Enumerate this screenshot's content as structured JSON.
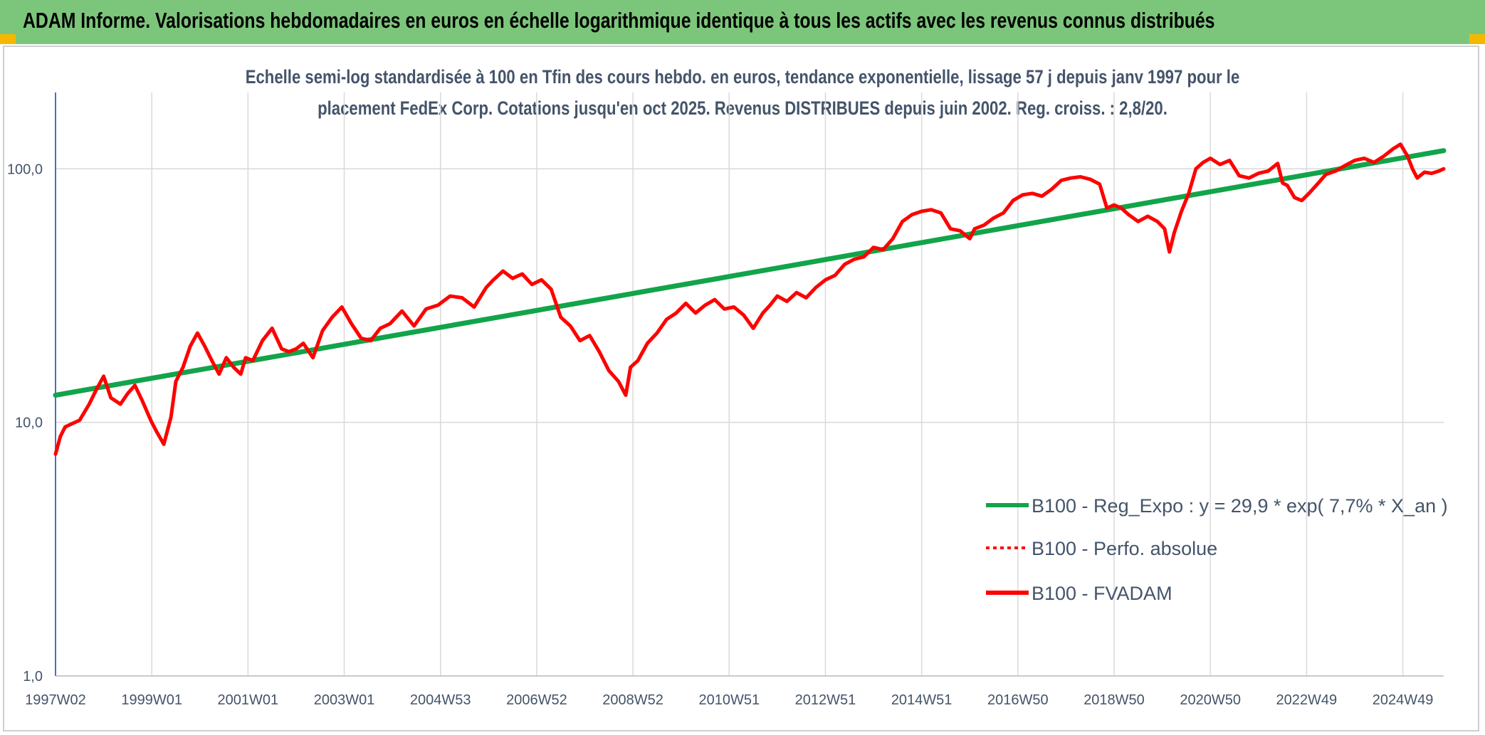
{
  "banner": {
    "title": "ADAM Informe. Valorisations hebdomadaires en euros en échelle logarithmique identique à tous les actifs avec les revenus connus distribués",
    "color": "#7cc67b"
  },
  "chart_data": {
    "type": "line",
    "subtitle_lines": [
      "Echelle semi-log standardisée à 100 en Tfin des cours hebdo. en euros, tendance exponentielle, lissage 57 j depuis janv 1997 pour le",
      "placement FedEx Corp. Cotations jusqu'en oct 2025. Revenus DISTRIBUES depuis juin 2002. Reg. croiss. : 2,8/20."
    ],
    "y_scale": "log",
    "ylim": [
      1,
      200
    ],
    "y_ticks": [
      {
        "value": 1,
        "label": "1,0"
      },
      {
        "value": 10,
        "label": "10,0"
      },
      {
        "value": 100,
        "label": "100,0"
      }
    ],
    "xlim": [
      1997.0,
      2025.85
    ],
    "x_ticks": [
      {
        "value": 1997.0,
        "label": "1997W02"
      },
      {
        "value": 1999.0,
        "label": "1999W01"
      },
      {
        "value": 2001.0,
        "label": "2001W01"
      },
      {
        "value": 2003.0,
        "label": "2003W01"
      },
      {
        "value": 2005.0,
        "label": "2004W53"
      },
      {
        "value": 2007.0,
        "label": "2006W52"
      },
      {
        "value": 2009.0,
        "label": "2008W52"
      },
      {
        "value": 2011.0,
        "label": "2010W51"
      },
      {
        "value": 2013.0,
        "label": "2012W51"
      },
      {
        "value": 2015.0,
        "label": "2014W51"
      },
      {
        "value": 2017.0,
        "label": "2016W50"
      },
      {
        "value": 2019.0,
        "label": "2018W50"
      },
      {
        "value": 2021.0,
        "label": "2020W50"
      },
      {
        "value": 2023.0,
        "label": "2022W49"
      },
      {
        "value": 2025.0,
        "label": "2024W49"
      }
    ],
    "grid": "vertical and horizontal, light gray",
    "legend_position": "lower-right",
    "series": [
      {
        "name": "B100 - Reg_Expo : y = 29,9 * exp( 7,7% *  X_an )",
        "color": "#12a44a",
        "style": "solid",
        "x": [
          1997.0,
          2025.85
        ],
        "y": [
          12.8,
          118
        ]
      },
      {
        "name": "B100 - Perfo. absolue",
        "color": "#ff0000",
        "style": "dotted",
        "x": [],
        "y": []
      },
      {
        "name": "B100 - FVADAM",
        "color": "#ff0000",
        "style": "solid",
        "x": [
          1997.0,
          1997.1,
          1997.2,
          1997.35,
          1997.5,
          1997.7,
          1997.85,
          1998.0,
          1998.15,
          1998.35,
          1998.5,
          1998.65,
          1998.8,
          1998.95,
          1999.0,
          1999.1,
          1999.25,
          1999.4,
          1999.5,
          1999.65,
          1999.8,
          1999.95,
          2000.1,
          2000.25,
          2000.4,
          2000.55,
          2000.7,
          2000.85,
          2000.95,
          2001.1,
          2001.3,
          2001.5,
          2001.7,
          2001.85,
          2002.0,
          2002.15,
          2002.35,
          2002.55,
          2002.75,
          2002.95,
          2003.15,
          2003.35,
          2003.55,
          2003.75,
          2003.95,
          2004.2,
          2004.45,
          2004.7,
          2004.95,
          2005.2,
          2005.45,
          2005.7,
          2005.95,
          2006.1,
          2006.3,
          2006.5,
          2006.7,
          2006.9,
          2007.1,
          2007.3,
          2007.5,
          2007.7,
          2007.9,
          2008.1,
          2008.3,
          2008.5,
          2008.7,
          2008.85,
          2008.95,
          2009.1,
          2009.3,
          2009.5,
          2009.7,
          2009.9,
          2010.1,
          2010.3,
          2010.5,
          2010.7,
          2010.9,
          2011.1,
          2011.3,
          2011.5,
          2011.7,
          2011.85,
          2012.0,
          2012.2,
          2012.4,
          2012.6,
          2012.8,
          2013.0,
          2013.2,
          2013.4,
          2013.6,
          2013.8,
          2014.0,
          2014.2,
          2014.4,
          2014.6,
          2014.8,
          2015.0,
          2015.2,
          2015.4,
          2015.6,
          2015.8,
          2016.0,
          2016.1,
          2016.3,
          2016.5,
          2016.7,
          2016.9,
          2017.1,
          2017.3,
          2017.5,
          2017.7,
          2017.9,
          2018.1,
          2018.3,
          2018.5,
          2018.7,
          2018.85,
          2019.0,
          2019.15,
          2019.3,
          2019.5,
          2019.7,
          2019.9,
          2020.05,
          2020.15,
          2020.25,
          2020.4,
          2020.55,
          2020.7,
          2020.85,
          2021.0,
          2021.2,
          2021.4,
          2021.6,
          2021.8,
          2022.0,
          2022.2,
          2022.4,
          2022.5,
          2022.6,
          2022.75,
          2022.9,
          2023.05,
          2023.2,
          2023.4,
          2023.6,
          2023.8,
          2024.0,
          2024.2,
          2024.4,
          2024.6,
          2024.8,
          2024.95,
          2025.1,
          2025.2,
          2025.3,
          2025.45,
          2025.6,
          2025.75,
          2025.85
        ],
        "y": [
          7.5,
          8.8,
          9.6,
          9.9,
          10.2,
          11.8,
          13.5,
          15.2,
          12.5,
          11.8,
          13.0,
          14.0,
          12.2,
          10.5,
          10.0,
          9.2,
          8.2,
          10.5,
          14.5,
          16.5,
          20.0,
          22.5,
          20.0,
          17.5,
          15.5,
          18.0,
          16.5,
          15.5,
          18.0,
          17.5,
          21.0,
          23.5,
          19.5,
          19.0,
          19.5,
          20.5,
          18.0,
          23.0,
          26.0,
          28.5,
          24.5,
          21.5,
          21.0,
          23.5,
          24.5,
          27.5,
          24.0,
          28.0,
          29.0,
          31.5,
          31.0,
          28.5,
          34.0,
          36.5,
          39.5,
          37.0,
          38.5,
          35.0,
          36.5,
          33.5,
          26.0,
          24.0,
          21.0,
          22.0,
          19.0,
          16.0,
          14.5,
          12.8,
          16.5,
          17.5,
          20.5,
          22.5,
          25.5,
          27.0,
          29.5,
          27.0,
          29.0,
          30.5,
          28.0,
          28.5,
          26.5,
          23.5,
          27.0,
          29.0,
          31.5,
          30.0,
          32.5,
          31.0,
          34.0,
          36.5,
          38.0,
          42.0,
          44.0,
          45.0,
          49.0,
          48.0,
          53.0,
          62.0,
          66.0,
          68.0,
          69.0,
          67.0,
          58.0,
          57.0,
          53.0,
          58.0,
          60.0,
          64.0,
          67.0,
          75.0,
          79.0,
          80.0,
          78.0,
          83.0,
          90.0,
          92.0,
          93.0,
          91.0,
          87.0,
          70.0,
          72.0,
          70.0,
          66.0,
          62.0,
          65.0,
          62.0,
          58.0,
          47.0,
          56.0,
          68.0,
          80.0,
          100.0,
          106.0,
          110.0,
          104.0,
          108.0,
          94.0,
          92.0,
          96.0,
          98.0,
          105.0,
          88.0,
          86.0,
          77.0,
          75.0,
          80.0,
          86.0,
          95.0,
          98.0,
          103.0,
          108.0,
          110.0,
          106.0,
          112.0,
          120.0,
          125.0,
          112.0,
          100.0,
          92.0,
          97.0,
          96.0,
          98.0,
          100.0
        ]
      }
    ]
  }
}
